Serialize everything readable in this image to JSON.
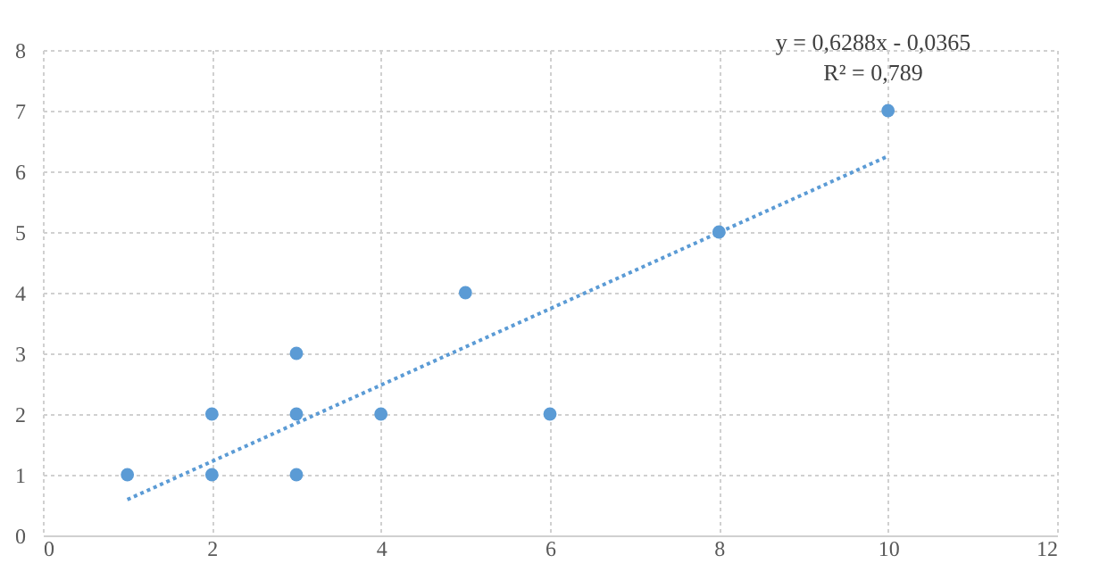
{
  "chart_data": {
    "type": "scatter",
    "xlim": [
      0,
      12
    ],
    "xticks": [
      0,
      2,
      4,
      6,
      8,
      10,
      12
    ],
    "ylim": [
      0,
      8
    ],
    "yticks": [
      0,
      1,
      2,
      3,
      4,
      5,
      6,
      7,
      8
    ],
    "grid": true,
    "annotations": [
      "y = 0,6288x - 0,0365",
      "R² = 0,789"
    ],
    "series": [
      {
        "color": "#5b9bd5",
        "marker": "circle",
        "x": [
          1,
          2,
          2,
          3,
          3,
          3,
          4,
          5,
          6,
          8,
          10
        ],
        "values": [
          1,
          2,
          1,
          3,
          2,
          1,
          2,
          4,
          2,
          5,
          7
        ]
      },
      {
        "type": "line",
        "color": "#5b9bd5",
        "line_style": "dotted",
        "x": [
          1,
          10
        ],
        "values": [
          0.59,
          6.25
        ]
      }
    ]
  }
}
